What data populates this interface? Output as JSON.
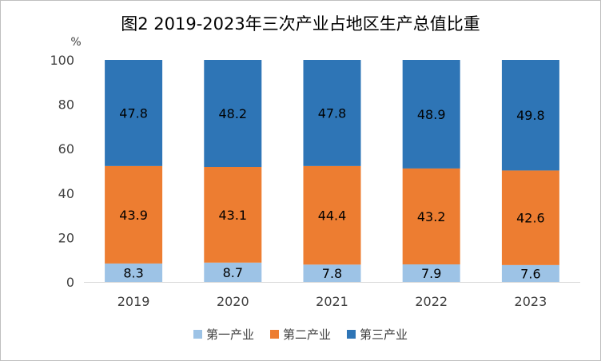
{
  "chart_data": {
    "type": "bar",
    "stacked": true,
    "title": "图2 2019-2023年三次产业占地区生产总值比重",
    "ylabel": "%",
    "ylim": [
      0,
      100
    ],
    "yticks": [
      0,
      20,
      40,
      60,
      80,
      100
    ],
    "categories": [
      "2019",
      "2020",
      "2021",
      "2022",
      "2023"
    ],
    "series": [
      {
        "name": "第一产业",
        "color": "#9dc3e6",
        "values": [
          8.3,
          8.7,
          7.8,
          7.9,
          7.6
        ]
      },
      {
        "name": "第二产业",
        "color": "#ed7d31",
        "values": [
          43.9,
          43.1,
          44.4,
          43.2,
          42.6
        ]
      },
      {
        "name": "第三产业",
        "color": "#2e75b6",
        "values": [
          47.8,
          48.2,
          47.8,
          48.9,
          49.8
        ]
      }
    ],
    "legend_position": "bottom",
    "grid": false
  }
}
